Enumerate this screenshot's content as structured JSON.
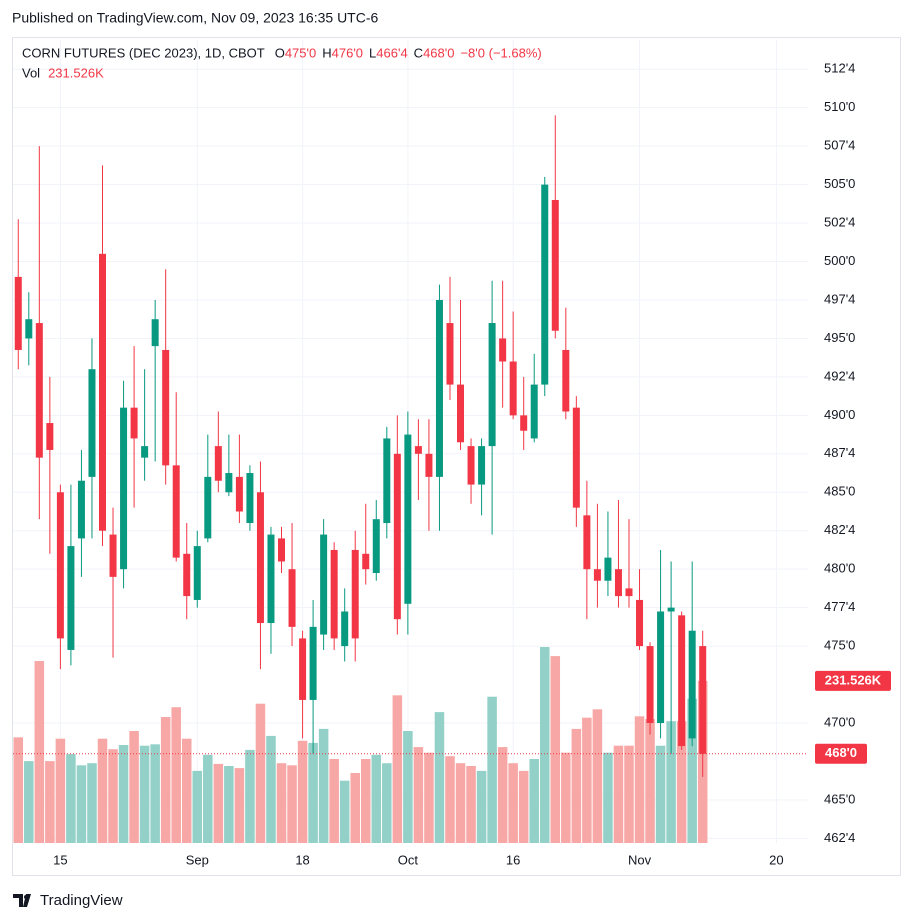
{
  "published": "Published on TradingView.com, Nov 09, 2023 16:35 UTC-6",
  "brand": "TradingView",
  "chart_data": {
    "type": "candlestick",
    "title": "CORN FUTURES (DEC 2023), 1D, CBOT",
    "ohlc_legend": [
      {
        "key": "O",
        "text": "475'0"
      },
      {
        "key": "H",
        "text": "476'0"
      },
      {
        "key": "L",
        "text": "466'4"
      },
      {
        "key": "C",
        "text": "468'0"
      }
    ],
    "change": "−8'0 (−1.68%)",
    "volume_legend": {
      "key": "Vol",
      "text": "231.526K"
    },
    "last_price_label": "468'0",
    "last_volume_label": "231.526K",
    "up_color": "#089981",
    "down_color": "#f23645",
    "volume_up_color": "#93d1c8",
    "volume_down_color": "#f7a8a6",
    "open": [
      499,
      495,
      496,
      489.5,
      485,
      474.75,
      482,
      486,
      500.5,
      482.25,
      480,
      490.5,
      487.25,
      494.5,
      494.25,
      486.75,
      481,
      478,
      482,
      488,
      485,
      486,
      483,
      485,
      476.5,
      482,
      480,
      475.5,
      471.5,
      475.75,
      481.25,
      475,
      481.25,
      481,
      479.75,
      483,
      487.5,
      477.75,
      488,
      487.5,
      486,
      496,
      492,
      488,
      485.5,
      488,
      495,
      493.5,
      490,
      488.5,
      492,
      504,
      494.25,
      490.5,
      483.5,
      480,
      479.25,
      480,
      478.75,
      478,
      475,
      470,
      477.25,
      477,
      469,
      475
    ],
    "high": [
      502.75,
      498,
      507.5,
      492.5,
      485.5,
      485.5,
      487.75,
      495,
      506.25,
      484,
      492.25,
      494.5,
      493,
      497.5,
      499.5,
      491.5,
      483,
      482.5,
      488.75,
      490.25,
      488.75,
      488.75,
      486.75,
      487,
      482.75,
      482.75,
      483,
      476,
      478,
      483.25,
      481.75,
      478.75,
      482.5,
      484.25,
      484.5,
      489.25,
      490,
      490.25,
      489.75,
      489.75,
      498.5,
      499,
      497.5,
      488.5,
      488.5,
      498.75,
      498.75,
      496.75,
      492.5,
      494,
      505.5,
      509.5,
      497,
      491.25,
      485.75,
      484.25,
      483.75,
      484.5,
      483.25,
      480,
      475.25,
      481.25,
      480.5,
      477.25,
      480.5,
      476
    ],
    "low": [
      493,
      493.25,
      483.25,
      481,
      473.5,
      473.75,
      479.5,
      482,
      481.5,
      474.25,
      478.75,
      484,
      485.75,
      487,
      485.5,
      480.5,
      476.75,
      477.5,
      481.75,
      485,
      484.75,
      483,
      482.5,
      473.5,
      474.5,
      479.75,
      475,
      469,
      468,
      474.75,
      474.75,
      474,
      474,
      479,
      479.25,
      482,
      475.75,
      475.75,
      484.5,
      482.5,
      482.5,
      491,
      487.75,
      484.25,
      483.5,
      482.25,
      490.5,
      489.75,
      487.75,
      488.25,
      491.25,
      495,
      489.75,
      482.75,
      476.75,
      477.5,
      478.25,
      477.5,
      477.5,
      474.75,
      469.25,
      469,
      468,
      468.25,
      468.5,
      466.5
    ],
    "close": [
      494.25,
      496.25,
      487.25,
      487.75,
      475.5,
      481.5,
      485.75,
      493,
      482.5,
      479.5,
      490.5,
      488.5,
      488,
      496.25,
      486.75,
      480.75,
      478.25,
      481.5,
      486,
      485.75,
      486.25,
      483.75,
      486.25,
      476.5,
      482.25,
      480.5,
      476.25,
      471.5,
      476.25,
      482.25,
      475.5,
      477.25,
      475.5,
      480,
      483.25,
      488.5,
      476.75,
      488.75,
      487.5,
      486,
      497.5,
      492,
      488.25,
      485.5,
      488,
      496,
      493.5,
      490,
      489,
      492,
      505,
      495.5,
      490.25,
      484,
      480,
      479.25,
      480.75,
      478.25,
      478.25,
      475,
      470,
      477.25,
      477.5,
      468.5,
      476,
      468
    ],
    "volume": [
      151000,
      117000,
      260000,
      117000,
      149000,
      127000,
      111000,
      114000,
      149000,
      134000,
      140000,
      160000,
      139000,
      141000,
      180000,
      194000,
      149000,
      103000,
      126000,
      113000,
      110000,
      107000,
      133000,
      199000,
      153000,
      114000,
      111000,
      146000,
      143000,
      163000,
      120000,
      89000,
      100000,
      120000,
      126000,
      114000,
      211000,
      160000,
      137000,
      129000,
      187000,
      124000,
      114000,
      110000,
      103000,
      209000,
      137000,
      114000,
      103000,
      120000,
      280000,
      267000,
      129000,
      163000,
      179000,
      191000,
      129000,
      139000,
      139000,
      181000,
      177000,
      139000,
      174000,
      174000,
      206000,
      231526
    ],
    "xlim": [
      -0.5,
      75
    ],
    "xticks": [
      {
        "value": 4,
        "label": "15"
      },
      {
        "value": 17,
        "label": "Sep"
      },
      {
        "value": 27,
        "label": "18"
      },
      {
        "value": 37,
        "label": "Oct"
      },
      {
        "value": 47,
        "label": "16"
      },
      {
        "value": 59,
        "label": "Nov"
      },
      {
        "value": 72,
        "label": "20"
      }
    ],
    "ylim": [
      462.2,
      514.4
    ],
    "yticks": [
      {
        "value": 462.5,
        "label": "462'4"
      },
      {
        "value": 465,
        "label": "465'0"
      },
      {
        "value": 470,
        "label": "470'0"
      },
      {
        "value": 475,
        "label": "475'0"
      },
      {
        "value": 477.5,
        "label": "477'4"
      },
      {
        "value": 480,
        "label": "480'0"
      },
      {
        "value": 482.5,
        "label": "482'4"
      },
      {
        "value": 485,
        "label": "485'0"
      },
      {
        "value": 487.5,
        "label": "487'4"
      },
      {
        "value": 490,
        "label": "490'0"
      },
      {
        "value": 492.5,
        "label": "492'4"
      },
      {
        "value": 495,
        "label": "495'0"
      },
      {
        "value": 497.5,
        "label": "497'4"
      },
      {
        "value": 500,
        "label": "500'0"
      },
      {
        "value": 502.5,
        "label": "502'4"
      },
      {
        "value": 505,
        "label": "505'0"
      },
      {
        "value": 507.5,
        "label": "507'4"
      },
      {
        "value": 510,
        "label": "510'0"
      },
      {
        "value": 512.5,
        "label": "512'4"
      }
    ],
    "volume_lim": [
      0,
      700000
    ],
    "grid": true
  }
}
